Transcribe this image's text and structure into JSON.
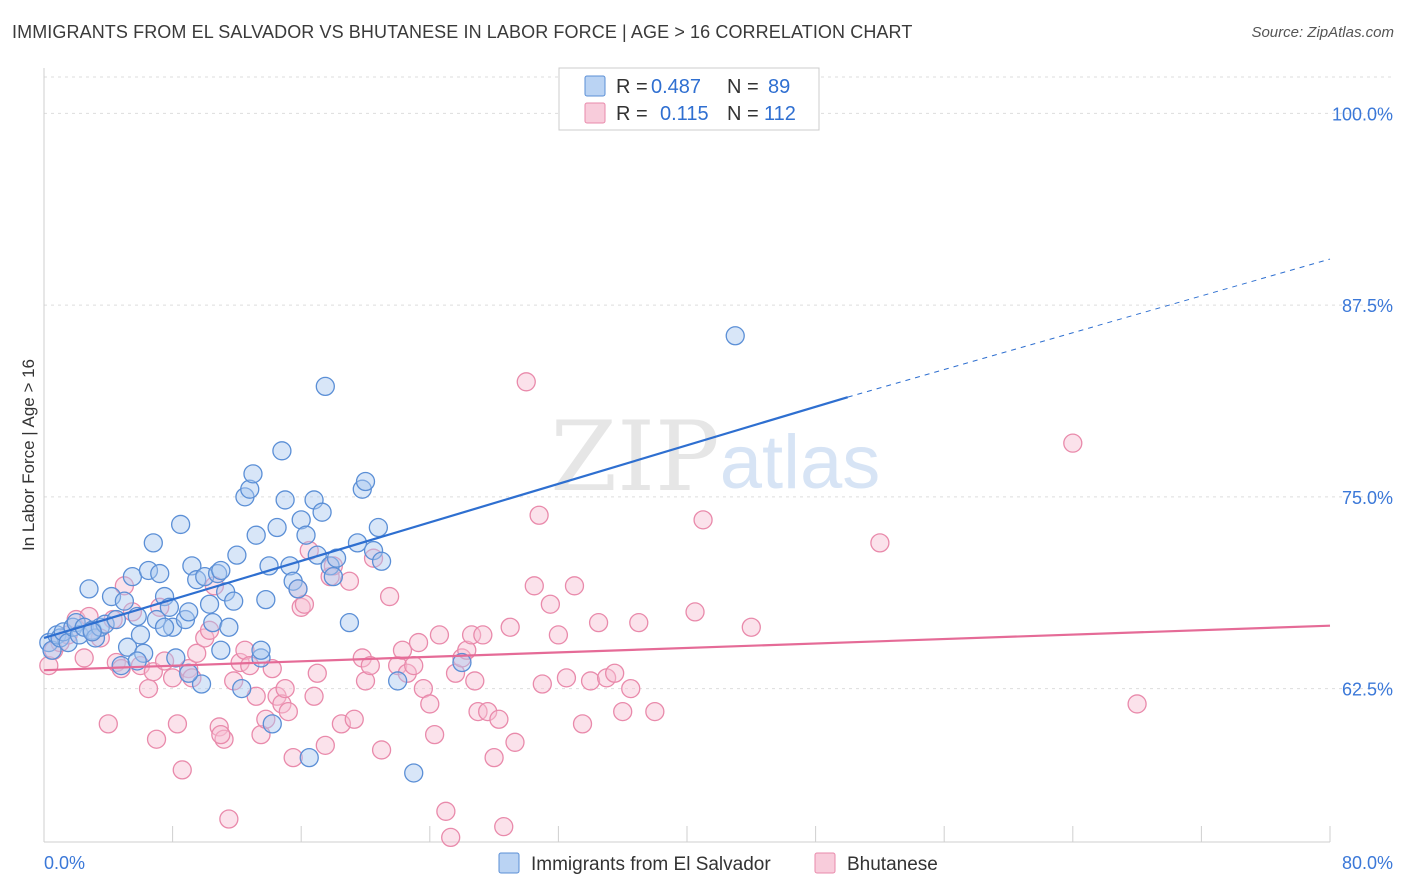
{
  "title": "IMMIGRANTS FROM EL SALVADOR VS BHUTANESE IN LABOR FORCE | AGE > 16 CORRELATION CHART",
  "source": "Source: ZipAtlas.com",
  "watermark": {
    "zip": "ZIP",
    "atlas": "atlas"
  },
  "colors": {
    "blue_fill": "#a9c8f0",
    "blue_stroke": "#5b8fd6",
    "blue_line": "#2e6fd0",
    "pink_fill": "#f6bfd2",
    "pink_stroke": "#e98aab",
    "pink_line": "#e56b97",
    "axis_label": "#3b78d8",
    "grid": "#dddddd"
  },
  "legend": {
    "rows": [
      {
        "r_label": "R =",
        "r_value": "0.487",
        "n_label": "N =",
        "n_value": "89"
      },
      {
        "r_label": "R =",
        "r_value": "0.115",
        "n_label": "N =",
        "n_value": "112"
      }
    ]
  },
  "chart_data": {
    "type": "scatter",
    "title": "IMMIGRANTS FROM EL SALVADOR VS BHUTANESE IN LABOR FORCE | AGE > 16 CORRELATION CHART",
    "xlabel": "",
    "ylabel": "In Labor Force | Age > 16",
    "xlim": [
      0,
      80
    ],
    "ylim": [
      52.5,
      102.5
    ],
    "x_tick_labels": [
      "0.0%",
      "80.0%"
    ],
    "y_ticks": [
      62.5,
      75.0,
      87.5,
      100.0
    ],
    "y_tick_labels": [
      "62.5%",
      "75.0%",
      "87.5%",
      "100.0%"
    ],
    "grid": "horizontal dashed",
    "legend_position": "top-center",
    "series": [
      {
        "name": "Immigrants from El Salvador",
        "R": 0.487,
        "N": 89,
        "trend": {
          "x": [
            0,
            50
          ],
          "y": [
            65.8,
            81.5
          ],
          "dashed_to": [
            80,
            90.5
          ]
        },
        "points": [
          [
            0.3,
            65.5
          ],
          [
            0.5,
            65.0
          ],
          [
            0.8,
            66.0
          ],
          [
            1.0,
            65.8
          ],
          [
            1.2,
            66.2
          ],
          [
            1.5,
            65.5
          ],
          [
            1.8,
            66.5
          ],
          [
            2.0,
            66.8
          ],
          [
            2.2,
            66.0
          ],
          [
            2.5,
            66.5
          ],
          [
            2.8,
            69.0
          ],
          [
            3.0,
            66.3
          ],
          [
            3.2,
            65.8
          ],
          [
            3.5,
            66.5
          ],
          [
            3.8,
            66.7
          ],
          [
            4.2,
            68.5
          ],
          [
            4.5,
            67.0
          ],
          [
            4.8,
            64.0
          ],
          [
            5.0,
            68.2
          ],
          [
            5.2,
            65.2
          ],
          [
            5.5,
            69.8
          ],
          [
            5.8,
            67.2
          ],
          [
            6.0,
            66.0
          ],
          [
            6.2,
            64.8
          ],
          [
            6.5,
            70.2
          ],
          [
            6.8,
            72.0
          ],
          [
            7.0,
            67.0
          ],
          [
            7.2,
            70.0
          ],
          [
            7.5,
            68.5
          ],
          [
            7.8,
            67.8
          ],
          [
            8.0,
            66.5
          ],
          [
            8.2,
            64.5
          ],
          [
            8.5,
            73.2
          ],
          [
            8.8,
            67.0
          ],
          [
            9.0,
            67.5
          ],
          [
            9.2,
            70.5
          ],
          [
            9.5,
            69.6
          ],
          [
            9.8,
            62.8
          ],
          [
            10.0,
            69.8
          ],
          [
            10.3,
            68.0
          ],
          [
            10.5,
            66.8
          ],
          [
            10.8,
            70.0
          ],
          [
            11.0,
            70.2
          ],
          [
            11.3,
            68.8
          ],
          [
            11.5,
            66.5
          ],
          [
            11.8,
            68.2
          ],
          [
            12.0,
            71.2
          ],
          [
            12.3,
            62.5
          ],
          [
            12.5,
            75.0
          ],
          [
            12.8,
            75.5
          ],
          [
            13.0,
            76.5
          ],
          [
            13.2,
            72.5
          ],
          [
            13.5,
            64.5
          ],
          [
            13.8,
            68.3
          ],
          [
            14.0,
            70.5
          ],
          [
            14.2,
            60.2
          ],
          [
            14.5,
            73.0
          ],
          [
            14.8,
            78.0
          ],
          [
            15.0,
            74.8
          ],
          [
            15.3,
            70.5
          ],
          [
            15.5,
            69.5
          ],
          [
            15.8,
            69.0
          ],
          [
            16.0,
            73.5
          ],
          [
            16.3,
            72.5
          ],
          [
            16.5,
            58.0
          ],
          [
            16.8,
            74.8
          ],
          [
            17.0,
            71.2
          ],
          [
            17.3,
            74.0
          ],
          [
            17.5,
            82.2
          ],
          [
            17.8,
            70.5
          ],
          [
            18.0,
            69.8
          ],
          [
            18.2,
            71.0
          ],
          [
            19.0,
            66.8
          ],
          [
            19.5,
            72.0
          ],
          [
            19.8,
            75.5
          ],
          [
            20.0,
            76.0
          ],
          [
            20.5,
            71.5
          ],
          [
            20.8,
            73.0
          ],
          [
            21.0,
            70.8
          ],
          [
            22.0,
            63.0
          ],
          [
            23.0,
            57.0
          ],
          [
            26.0,
            64.2
          ],
          [
            43.0,
            85.5
          ],
          [
            11.0,
            65.0
          ],
          [
            13.5,
            65.0
          ],
          [
            9.0,
            63.5
          ],
          [
            7.5,
            66.5
          ],
          [
            5.8,
            64.3
          ],
          [
            3.0,
            66.2
          ]
        ]
      },
      {
        "name": "Bhutanese",
        "R": 0.115,
        "N": 112,
        "trend": {
          "x": [
            0,
            80
          ],
          "y": [
            63.7,
            66.6
          ]
        },
        "points": [
          [
            0.3,
            64.0
          ],
          [
            0.6,
            65.0
          ],
          [
            1.0,
            65.5
          ],
          [
            1.5,
            66.0
          ],
          [
            2.0,
            67.0
          ],
          [
            2.5,
            64.5
          ],
          [
            3.0,
            66.2
          ],
          [
            3.5,
            65.8
          ],
          [
            4.0,
            60.2
          ],
          [
            4.5,
            64.2
          ],
          [
            4.8,
            63.8
          ],
          [
            5.0,
            69.2
          ],
          [
            5.5,
            67.5
          ],
          [
            6.0,
            64.0
          ],
          [
            6.5,
            62.5
          ],
          [
            6.8,
            63.6
          ],
          [
            7.0,
            59.2
          ],
          [
            7.5,
            64.3
          ],
          [
            8.0,
            63.2
          ],
          [
            8.3,
            60.2
          ],
          [
            8.6,
            57.2
          ],
          [
            9.0,
            63.8
          ],
          [
            9.5,
            64.8
          ],
          [
            10.0,
            65.8
          ],
          [
            10.3,
            66.3
          ],
          [
            10.6,
            69.2
          ],
          [
            10.9,
            60.0
          ],
          [
            11.2,
            59.2
          ],
          [
            11.5,
            54.0
          ],
          [
            11.8,
            63.0
          ],
          [
            12.2,
            64.2
          ],
          [
            12.5,
            65.0
          ],
          [
            12.8,
            64.0
          ],
          [
            13.2,
            62.0
          ],
          [
            13.5,
            59.5
          ],
          [
            13.8,
            60.5
          ],
          [
            14.2,
            63.8
          ],
          [
            14.5,
            62.0
          ],
          [
            14.8,
            61.5
          ],
          [
            15.2,
            61.0
          ],
          [
            15.5,
            58.0
          ],
          [
            15.8,
            69.0
          ],
          [
            16.0,
            67.8
          ],
          [
            16.2,
            68.0
          ],
          [
            16.5,
            71.5
          ],
          [
            17.0,
            63.5
          ],
          [
            17.5,
            58.8
          ],
          [
            17.8,
            69.8
          ],
          [
            18.0,
            70.5
          ],
          [
            18.5,
            60.2
          ],
          [
            19.0,
            69.5
          ],
          [
            19.3,
            60.5
          ],
          [
            19.8,
            64.5
          ],
          [
            20.0,
            63.0
          ],
          [
            20.3,
            64.0
          ],
          [
            20.5,
            71.0
          ],
          [
            21.0,
            58.5
          ],
          [
            21.5,
            68.5
          ],
          [
            22.0,
            64.0
          ],
          [
            22.3,
            65.0
          ],
          [
            22.6,
            63.5
          ],
          [
            23.0,
            64.0
          ],
          [
            23.3,
            65.5
          ],
          [
            23.6,
            62.5
          ],
          [
            24.0,
            61.5
          ],
          [
            24.3,
            59.5
          ],
          [
            24.6,
            66.0
          ],
          [
            25.0,
            54.5
          ],
          [
            25.3,
            52.8
          ],
          [
            25.6,
            63.5
          ],
          [
            26.0,
            64.5
          ],
          [
            26.3,
            65.0
          ],
          [
            26.6,
            66.0
          ],
          [
            27.0,
            61.0
          ],
          [
            27.3,
            66.0
          ],
          [
            27.6,
            61.0
          ],
          [
            28.0,
            58.0
          ],
          [
            28.3,
            60.5
          ],
          [
            28.6,
            53.5
          ],
          [
            29.0,
            66.5
          ],
          [
            29.3,
            59.0
          ],
          [
            30.0,
            82.5
          ],
          [
            30.5,
            69.2
          ],
          [
            30.8,
            73.8
          ],
          [
            31.0,
            62.8
          ],
          [
            31.5,
            68.0
          ],
          [
            32.0,
            66.0
          ],
          [
            32.5,
            63.2
          ],
          [
            33.0,
            69.2
          ],
          [
            33.5,
            60.2
          ],
          [
            34.0,
            63.0
          ],
          [
            34.5,
            66.8
          ],
          [
            35.0,
            63.2
          ],
          [
            35.5,
            63.5
          ],
          [
            36.0,
            61.0
          ],
          [
            36.5,
            62.5
          ],
          [
            37.0,
            66.8
          ],
          [
            38.0,
            61.0
          ],
          [
            40.5,
            67.5
          ],
          [
            41.0,
            73.5
          ],
          [
            44.0,
            66.5
          ],
          [
            52.0,
            72.0
          ],
          [
            64.0,
            78.5
          ],
          [
            68.0,
            61.5
          ],
          [
            11.0,
            59.5
          ],
          [
            7.2,
            67.8
          ],
          [
            2.8,
            67.2
          ],
          [
            4.3,
            67.0
          ],
          [
            9.2,
            63.2
          ],
          [
            15.0,
            62.5
          ],
          [
            16.8,
            62.0
          ],
          [
            26.8,
            63.0
          ]
        ]
      }
    ]
  },
  "bottom_legend": {
    "items": [
      {
        "label": "Immigrants from El Salvador"
      },
      {
        "label": "Bhutanese"
      }
    ]
  }
}
